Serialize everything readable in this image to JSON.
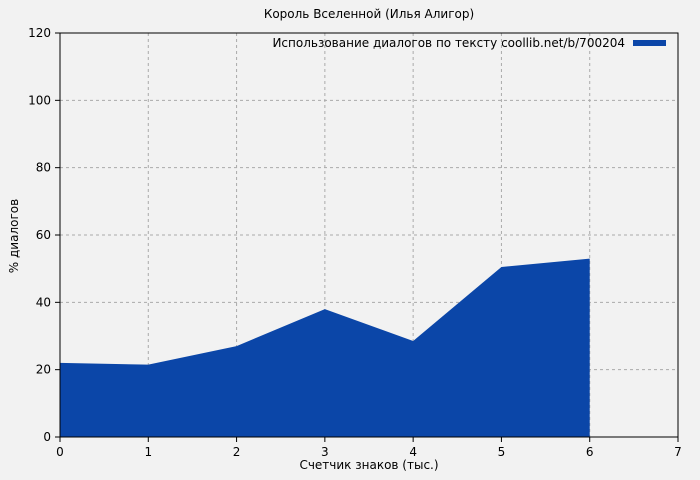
{
  "title": "Король Вселенной (Илья Алигор)",
  "legend": {
    "label": "Использование диалогов по тексту coollib.net/b/700204",
    "color": "#0b46a8"
  },
  "chart_data": {
    "type": "area",
    "title": "Король Вселенной (Илья Алигор)",
    "xlabel": "Счетчик знаков (тыс.)",
    "ylabel": "% диалогов",
    "series": [
      {
        "name": "Использование диалогов по тексту coollib.net/b/700204",
        "x": [
          0,
          1,
          2,
          3,
          4,
          5,
          6
        ],
        "values": [
          22,
          21.5,
          27,
          38,
          28.5,
          50.5,
          53
        ]
      }
    ],
    "xlim": [
      0,
      7
    ],
    "ylim": [
      0,
      120
    ],
    "x_ticks": [
      0,
      1,
      2,
      3,
      4,
      5,
      6,
      7
    ],
    "y_ticks": [
      0,
      20,
      40,
      60,
      80,
      100,
      120
    ],
    "grid": "dashed",
    "grid_color": "#aaaaaa",
    "fill_color": "#0b46a8",
    "frame_color": "#000000",
    "background": "#f2f2f2",
    "legend_position": "top-right-inside"
  }
}
